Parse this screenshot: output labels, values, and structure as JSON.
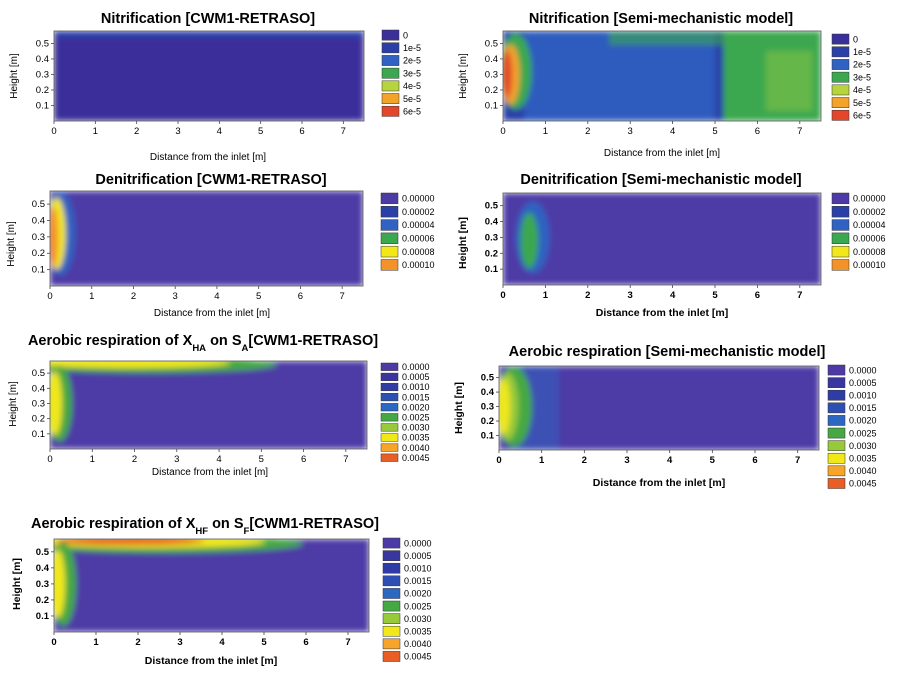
{
  "scales": {
    "nitrification": {
      "labels": [
        "0",
        "1e-5",
        "2e-5",
        "3e-5",
        "4e-5",
        "5e-5",
        "6e-5"
      ],
      "colors": [
        "#3b2f9a",
        "#2a3fa8",
        "#2f62c2",
        "#3aa84f",
        "#b7d43c",
        "#f4a32a",
        "#e3462b"
      ]
    },
    "denitrification": {
      "labels": [
        "0.00000",
        "0.00002",
        "0.00004",
        "0.00006",
        "0.00008",
        "0.00010"
      ],
      "colors": [
        "#4d3aa6",
        "#2a3fa8",
        "#2f62c2",
        "#3aa84f",
        "#f1e81a",
        "#f4922a"
      ]
    },
    "aerobic": {
      "labels": [
        "0.0000",
        "0.0005",
        "0.0010",
        "0.0015",
        "0.0020",
        "0.0025",
        "0.0030",
        "0.0035",
        "0.0040",
        "0.0045"
      ],
      "colors": [
        "#4d3aa6",
        "#3a36a0",
        "#2f3ca6",
        "#2d4fb4",
        "#2c68c2",
        "#45a843",
        "#98c93a",
        "#f1e81a",
        "#f6a52a",
        "#e85e25"
      ]
    }
  },
  "chart_data": [
    {
      "type": "heatmap",
      "title": "Nitrification [CWM1-RETRASO]",
      "xlabel": "Distance from the inlet [m]",
      "ylabel": "Height [m]",
      "xticks": [
        "0",
        "1",
        "2",
        "3",
        "4",
        "5",
        "6",
        "7"
      ],
      "yticks": [
        "0.1",
        "0.2",
        "0.3",
        "0.4",
        "0.5"
      ],
      "xlim": [
        0,
        7.5
      ],
      "ylim": [
        0,
        0.58
      ],
      "scale": "nitrification",
      "field": "Uniform near 0 over whole domain, slightly higher (~1e-5) along the top surface.",
      "bg": 0,
      "blobs": [
        {
          "x": 0.15,
          "y": 0.3,
          "rx": 0.15,
          "ry": 0.25,
          "v": 0
        }
      ]
    },
    {
      "type": "heatmap",
      "title": "Nitrification [Semi-mechanistic model]",
      "xlabel": "Distance from the inlet [m]",
      "ylabel": "Height [m]",
      "xticks": [
        "0",
        "1",
        "2",
        "3",
        "4",
        "5",
        "6",
        "7"
      ],
      "yticks": [
        "0.1",
        "0.2",
        "0.3",
        "0.4",
        "0.5"
      ],
      "xlim": [
        0,
        7.5
      ],
      "ylim": [
        0,
        0.58
      ],
      "scale": "nitrification",
      "field": "Peak ~6e-5 at the inlet (x < 0.4 m), ~2e-5 across middle, rising to ~3e-5 for x > 5 m."
    },
    {
      "type": "heatmap",
      "title": "Denitrification [CWM1-RETRASO]",
      "xlabel": "Distance from the inlet [m]",
      "ylabel": "Height [m]",
      "xticks": [
        "0",
        "1",
        "2",
        "3",
        "4",
        "5",
        "6",
        "7"
      ],
      "yticks": [
        "0.1",
        "0.2",
        "0.3",
        "0.4",
        "0.5"
      ],
      "xlim": [
        0,
        7.5
      ],
      "ylim": [
        0,
        0.58
      ],
      "scale": "denitrification",
      "field": "Peak ~0.00010 at the inlet (x < 0.3 m, 0.1–0.5 m height), ~0 elsewhere."
    },
    {
      "type": "heatmap",
      "title": "Denitrification [Semi-mechanistic model]",
      "xlabel": "Distance from the inlet [m]",
      "ylabel": "Height [m]",
      "xticks": [
        "0",
        "1",
        "2",
        "3",
        "4",
        "5",
        "6",
        "7"
      ],
      "yticks": [
        "0.1",
        "0.2",
        "0.3",
        "0.4",
        "0.5"
      ],
      "xlim": [
        0,
        7.5
      ],
      "ylim": [
        0,
        0.58
      ],
      "scale": "denitrification",
      "field": "Local peak ~0.00006 around x ≈ 0.6 m, ~0 elsewhere."
    },
    {
      "type": "heatmap",
      "title": "Aerobic respiration of XHA on SA[CWM1-RETRASO]",
      "title_parts": {
        "pre": "Aerobic respiration of X",
        "sub1": "HA",
        "mid": " on S",
        "sub2": "A",
        "post": "[CWM1-RETRASO]"
      },
      "xlabel": "Distance from the inlet [m]",
      "ylabel": "Height [m]",
      "xticks": [
        "0",
        "1",
        "2",
        "3",
        "4",
        "5",
        "6",
        "7"
      ],
      "yticks": [
        "0.1",
        "0.2",
        "0.3",
        "0.4",
        "0.5"
      ],
      "xlim": [
        0,
        7.5
      ],
      "ylim": [
        0,
        0.58
      ],
      "scale": "aerobic",
      "field": "Peak ~0.0035 at inlet (x < 0.3 m) and along top surface from x ≈ 0.5 to 4 m, ~0 elsewhere."
    },
    {
      "type": "heatmap",
      "title": "Aerobic respiration [Semi-mechanistic model]",
      "xlabel": "Distance from the inlet [m]",
      "ylabel": "Height [m]",
      "xticks": [
        "0",
        "1",
        "2",
        "3",
        "4",
        "5",
        "6",
        "7"
      ],
      "yticks": [
        "0.1",
        "0.2",
        "0.3",
        "0.4",
        "0.5"
      ],
      "xlim": [
        0,
        7.5
      ],
      "ylim": [
        0,
        0.58
      ],
      "scale": "aerobic",
      "field": "Peak ~0.0035 at inlet (x < 0.4 m), ~0 elsewhere."
    },
    {
      "type": "heatmap",
      "title": "Aerobic respiration of XHF on SF[CWM1-RETRASO]",
      "title_parts": {
        "pre": "Aerobic respiration of X",
        "sub1": "HF",
        "mid": " on S",
        "sub2": "F",
        "post": "[CWM1-RETRASO]"
      },
      "xlabel": "Distance from the inlet [m]",
      "ylabel": "Height [m]",
      "xticks": [
        "0",
        "1",
        "2",
        "3",
        "4",
        "5",
        "6",
        "7"
      ],
      "yticks": [
        "0.1",
        "0.2",
        "0.3",
        "0.4",
        "0.5"
      ],
      "xlim": [
        0,
        7.5
      ],
      "ylim": [
        0,
        0.58
      ],
      "scale": "aerobic",
      "field": "Peak ~0.0045 along the top surface from x ≈ 0.5 to 4.5 m, ~0.0035 at inlet, ~0 elsewhere."
    }
  ]
}
